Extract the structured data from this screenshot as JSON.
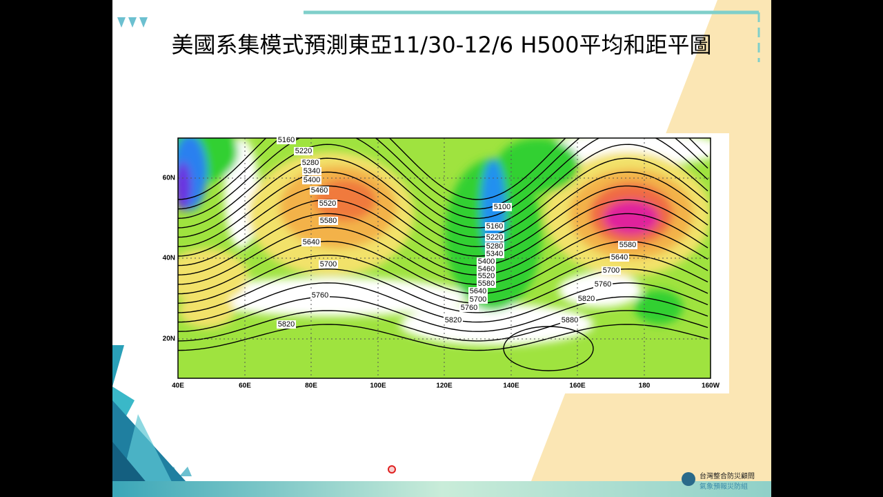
{
  "title": "美國系集模式預測東亞11/30-12/6 H500平均和距平圖",
  "map": {
    "lat_labels": [
      "60N",
      "40N",
      "20N"
    ],
    "lon_labels": [
      "40E",
      "60E",
      "80E",
      "100E",
      "120E",
      "140E",
      "160E",
      "180",
      "160W"
    ],
    "contour_labels": [
      "5160",
      "5220",
      "5280",
      "5340",
      "5400",
      "5460",
      "5520",
      "5580",
      "5640",
      "5700",
      "5760",
      "5820",
      "5100",
      "5160",
      "5220",
      "5280",
      "5340",
      "5400",
      "5460",
      "5520",
      "5580",
      "5640",
      "5700",
      "5760",
      "5820",
      "5580",
      "5640",
      "5700",
      "5760",
      "5820",
      "5880"
    ]
  },
  "logo": {
    "line1": "台灣整合防災顧問",
    "line2": "氣象預報災防組"
  }
}
